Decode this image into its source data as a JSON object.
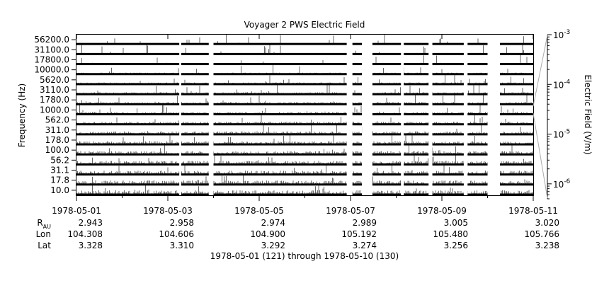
{
  "chart_data": {
    "type": "line",
    "title": "Voyager 2 PWS Electric Field",
    "ylabel": "Frequency (Hz)",
    "colorbar_label": "Electric Field (V/m)",
    "colorbar_scale": "log",
    "colorbar_range": [
      5e-07,
      0.001
    ],
    "colorbar_ticks": [
      {
        "value": 0.001,
        "base": "10",
        "exp": "-3"
      },
      {
        "value": 0.0001,
        "base": "10",
        "exp": "-4"
      },
      {
        "value": 1e-05,
        "base": "10",
        "exp": "-5"
      },
      {
        "value": 1e-06,
        "base": "10",
        "exp": "-6"
      }
    ],
    "channels": [
      "56200.0",
      "31100.0",
      "17800.0",
      "10000.0",
      "5620.0",
      "3110.0",
      "1780.0",
      "1000.0",
      "562.0",
      "311.0",
      "178.0",
      "100.0",
      "56.2",
      "31.1",
      "17.8",
      "10.0"
    ],
    "x_range": [
      "1978-05-01",
      "1978-05-11"
    ],
    "x_ticks": [
      "1978-05-01",
      "1978-05-03",
      "1978-05-05",
      "1978-05-07",
      "1978-05-09",
      "1978-05-11"
    ],
    "data_gaps": [
      [
        "1978-05-03 06:00",
        "1978-05-03 07:00"
      ],
      [
        "1978-05-03 21:30",
        "1978-05-04 00:00"
      ],
      [
        "1978-05-06 22:00",
        "1978-05-07 01:00"
      ],
      [
        "1978-05-07 06:00",
        "1978-05-07 11:30"
      ],
      [
        "1978-05-08 02:30",
        "1978-05-08 04:00"
      ],
      [
        "1978-05-08 17:00",
        "1978-05-08 19:00"
      ],
      [
        "1978-05-09 11:30",
        "1978-05-09 13:30"
      ],
      [
        "1978-05-10 00:00",
        "1978-05-10 06:30"
      ]
    ],
    "ephemeris": [
      {
        "label_main": "R",
        "label_sub": "AU",
        "values": [
          "2.943",
          "2.958",
          "2.974",
          "2.989",
          "3.005",
          "3.020"
        ]
      },
      {
        "label_main": "Lon",
        "label_sub": "",
        "values": [
          "104.308",
          "104.606",
          "104.900",
          "105.192",
          "105.480",
          "105.766"
        ]
      },
      {
        "label_main": "Lat",
        "label_sub": "",
        "values": [
          "3.328",
          "3.310",
          "3.292",
          "3.274",
          "3.256",
          "3.238"
        ]
      }
    ],
    "time_range_label": "1978-05-01 (121) through 1978-05-10 (130)"
  }
}
